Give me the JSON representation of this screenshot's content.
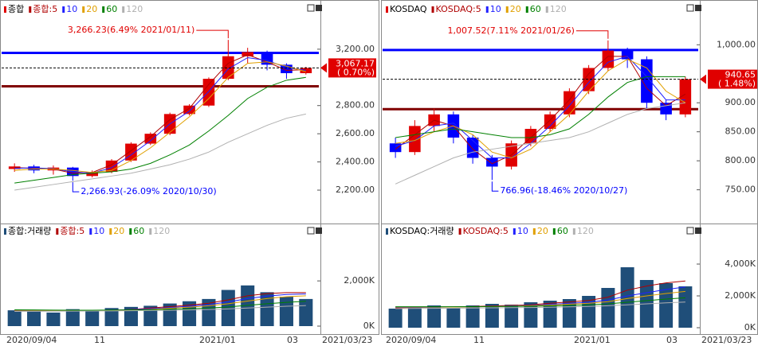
{
  "chart_data": [
    {
      "type": "candlestick",
      "ylim": [
        1980,
        3425
      ],
      "yticks": [
        {
          "value": 2200,
          "label": "2,200.00"
        },
        {
          "value": 2400,
          "label": "2,400.00"
        },
        {
          "value": 2600,
          "label": "2,600.00"
        },
        {
          "value": 2800,
          "label": "2,800.00"
        },
        {
          "value": 3200,
          "label": "3,200.00"
        }
      ],
      "series": [
        {
          "name": "종합",
          "up_color": "#e00000",
          "down_color": "#0000ff",
          "open": [
            2350,
            2368,
            2340,
            2360,
            2300,
            2330,
            2410,
            2530,
            2600,
            2740,
            2800,
            2990,
            3150,
            3180,
            3090,
            3030
          ],
          "high": [
            2390,
            2380,
            2375,
            2365,
            2340,
            2420,
            2540,
            2610,
            2750,
            2810,
            3000,
            3266.23,
            3210,
            3190,
            3100,
            3075
          ],
          "low": [
            2330,
            2320,
            2310,
            2266.93,
            2290,
            2320,
            2400,
            2520,
            2590,
            2730,
            2790,
            2980,
            3100,
            3050,
            2990,
            3020
          ],
          "close": [
            2368,
            2340,
            2360,
            2300,
            2330,
            2410,
            2530,
            2600,
            2740,
            2800,
            2990,
            3150,
            3180,
            3090,
            3030,
            3067.17
          ]
        },
        {
          "name": "종합:5",
          "color": "#b00000",
          "values": [
            2360,
            2355,
            2350,
            2320,
            2325,
            2380,
            2480,
            2580,
            2700,
            2780,
            2950,
            3100,
            3160,
            3110,
            3050,
            3055
          ]
        },
        {
          "name": "10",
          "color": "#2020ff",
          "values": [
            2355,
            2358,
            2352,
            2330,
            2320,
            2360,
            2450,
            2550,
            2670,
            2760,
            2900,
            3060,
            3140,
            3120,
            3070,
            3050
          ]
        },
        {
          "name": "20",
          "color": "#e0a000",
          "values": [
            2340,
            2350,
            2350,
            2340,
            2325,
            2340,
            2410,
            2500,
            2610,
            2720,
            2850,
            3000,
            3100,
            3110,
            3080,
            3040
          ]
        },
        {
          "name": "60",
          "color": "#008000",
          "values": [
            2250,
            2270,
            2290,
            2310,
            2320,
            2330,
            2350,
            2390,
            2450,
            2520,
            2620,
            2730,
            2850,
            2930,
            2980,
            3000
          ]
        },
        {
          "name": "120",
          "color": "#b0b0b0",
          "values": [
            2200,
            2220,
            2240,
            2260,
            2280,
            2300,
            2320,
            2350,
            2380,
            2420,
            2470,
            2540,
            2600,
            2660,
            2710,
            2740
          ]
        }
      ],
      "hlines": [
        {
          "value": 3174,
          "color": "#0000ff"
        },
        {
          "value": 2937,
          "color": "#800000"
        }
      ],
      "current": {
        "value": 3067.17,
        "label": "3,067.17",
        "change": "( 0.70%)"
      },
      "annotations": {
        "high": "3,266.23(6.49% 2021/01/11)",
        "low": "2,266.93(-26.09% 2020/10/30)"
      }
    },
    {
      "type": "bar",
      "ylim": [
        0,
        3870000
      ],
      "yticks": [
        {
          "value": 0,
          "label": "0K"
        },
        {
          "value": 2000000,
          "label": "2,000K"
        }
      ],
      "series": [
        {
          "name": "종합:거래량",
          "color": "#1f4e79",
          "values": [
            700000,
            650000,
            600000,
            750000,
            700000,
            800000,
            850000,
            900000,
            1000000,
            1100000,
            1200000,
            1600000,
            1800000,
            1500000,
            1300000,
            1200000
          ]
        },
        {
          "name": "종합:5",
          "color": "#b00000",
          "values": [
            680000,
            690000,
            680000,
            690000,
            690000,
            700000,
            730000,
            800000,
            860000,
            930000,
            1010000,
            1160000,
            1340000,
            1440000,
            1480000,
            1480000
          ]
        },
        {
          "name": "10",
          "color": "#2020ff",
          "values": [
            690000,
            685000,
            680000,
            685000,
            690000,
            700000,
            720000,
            770000,
            820000,
            880000,
            950000,
            1070000,
            1220000,
            1330000,
            1400000,
            1420000
          ]
        },
        {
          "name": "20",
          "color": "#e0a000",
          "values": [
            700000,
            695000,
            690000,
            690000,
            690000,
            695000,
            710000,
            740000,
            790000,
            840000,
            900000,
            990000,
            1110000,
            1220000,
            1300000,
            1340000
          ]
        },
        {
          "name": "60",
          "color": "#008000",
          "values": [
            720000,
            715000,
            710000,
            705000,
            705000,
            710000,
            715000,
            725000,
            745000,
            770000,
            800000,
            850000,
            920000,
            990000,
            1050000,
            1100000
          ]
        },
        {
          "name": "120",
          "color": "#b0b0b0",
          "values": [
            650000,
            655000,
            660000,
            665000,
            670000,
            675000,
            680000,
            690000,
            700000,
            715000,
            735000,
            760000,
            800000,
            840000,
            880000,
            910000
          ]
        }
      ],
      "x_labels": [
        "2020/09/04",
        "11",
        "2021/01",
        "03",
        "2021/03/23"
      ]
    },
    {
      "type": "candlestick",
      "ylim": [
        696,
        1047
      ],
      "yticks": [
        {
          "value": 750,
          "label": "750.00"
        },
        {
          "value": 800,
          "label": "800.00"
        },
        {
          "value": 850,
          "label": "850.00"
        },
        {
          "value": 900,
          "label": "900.00"
        },
        {
          "value": 1000,
          "label": "1,000.00"
        }
      ],
      "series": [
        {
          "name": "KOSDAQ",
          "up_color": "#e00000",
          "down_color": "#0000ff",
          "open": [
            830,
            815,
            860,
            880,
            840,
            805,
            790,
            830,
            855,
            880,
            920,
            960,
            990,
            975,
            900,
            880
          ],
          "high": [
            840,
            870,
            890,
            885,
            845,
            810,
            835,
            860,
            885,
            925,
            965,
            1007.52,
            995,
            980,
            905,
            945
          ],
          "low": [
            805,
            810,
            850,
            830,
            795,
            766.96,
            785,
            825,
            850,
            875,
            915,
            955,
            960,
            890,
            870,
            875
          ],
          "close": [
            815,
            860,
            880,
            840,
            805,
            790,
            830,
            855,
            880,
            920,
            960,
            990,
            975,
            900,
            880,
            940.65
          ]
        },
        {
          "name": "KOSDAQ:5",
          "color": "#b00000",
          "values": [
            820,
            845,
            870,
            860,
            820,
            795,
            810,
            840,
            870,
            905,
            950,
            980,
            980,
            925,
            895,
            915
          ]
        },
        {
          "name": "10",
          "color": "#2020ff",
          "values": [
            825,
            835,
            860,
            865,
            835,
            805,
            805,
            830,
            860,
            895,
            935,
            970,
            980,
            945,
            905,
            905
          ]
        },
        {
          "name": "20",
          "color": "#e0a000",
          "values": [
            830,
            835,
            850,
            860,
            845,
            815,
            805,
            820,
            850,
            880,
            920,
            955,
            975,
            960,
            920,
            900
          ]
        },
        {
          "name": "60",
          "color": "#008000",
          "values": [
            840,
            845,
            850,
            855,
            850,
            845,
            840,
            840,
            845,
            855,
            880,
            910,
            935,
            945,
            945,
            945
          ]
        },
        {
          "name": "120",
          "color": "#b0b0b0",
          "values": [
            760,
            775,
            790,
            805,
            815,
            820,
            825,
            830,
            835,
            840,
            850,
            865,
            880,
            890,
            895,
            900
          ]
        }
      ],
      "hlines": [
        {
          "value": 991,
          "color": "#0000ff"
        },
        {
          "value": 889,
          "color": "#800000"
        }
      ],
      "current": {
        "value": 940.65,
        "label": "940.65",
        "change": "( 1.48%)"
      },
      "annotations": {
        "high": "1,007.52(7.11% 2021/01/26)",
        "low": "766.96(-18.46% 2020/10/27)"
      }
    },
    {
      "type": "bar",
      "ylim": [
        0,
        5600000
      ],
      "yticks": [
        {
          "value": 0,
          "label": "0K"
        },
        {
          "value": 2000000,
          "label": "2,000K"
        },
        {
          "value": 4000000,
          "label": "4,000K"
        }
      ],
      "series": [
        {
          "name": "KOSDAQ:거래량",
          "color": "#1f4e79",
          "values": [
            1200000,
            1300000,
            1400000,
            1250000,
            1400000,
            1500000,
            1450000,
            1600000,
            1700000,
            1800000,
            2000000,
            2500000,
            3800000,
            3000000,
            2800000,
            2600000
          ]
        },
        {
          "name": "KOSDAQ:5",
          "color": "#b00000",
          "values": [
            1250000,
            1270000,
            1300000,
            1310000,
            1330000,
            1370000,
            1400000,
            1440000,
            1540000,
            1620000,
            1710000,
            1920000,
            2360000,
            2620000,
            2820000,
            2940000
          ]
        },
        {
          "name": "10",
          "color": "#2020ff",
          "values": [
            1280000,
            1280000,
            1290000,
            1300000,
            1310000,
            1340000,
            1370000,
            1400000,
            1460000,
            1530000,
            1600000,
            1740000,
            2000000,
            2200000,
            2400000,
            2560000
          ]
        },
        {
          "name": "20",
          "color": "#e0a000",
          "values": [
            1300000,
            1300000,
            1300000,
            1300000,
            1310000,
            1330000,
            1350000,
            1380000,
            1420000,
            1480000,
            1540000,
            1640000,
            1830000,
            2000000,
            2150000,
            2280000
          ]
        },
        {
          "name": "60",
          "color": "#008000",
          "values": [
            1320000,
            1320000,
            1320000,
            1320000,
            1325000,
            1330000,
            1340000,
            1350000,
            1370000,
            1400000,
            1440000,
            1500000,
            1600000,
            1700000,
            1800000,
            1880000
          ]
        },
        {
          "name": "120",
          "color": "#b0b0b0",
          "values": [
            1200000,
            1210000,
            1220000,
            1230000,
            1240000,
            1250000,
            1260000,
            1270000,
            1290000,
            1310000,
            1340000,
            1380000,
            1440000,
            1500000,
            1560000,
            1610000
          ]
        }
      ],
      "x_labels": [
        "2020/09/04",
        "11",
        "2021/01",
        "03",
        "2021/03/23"
      ]
    }
  ]
}
